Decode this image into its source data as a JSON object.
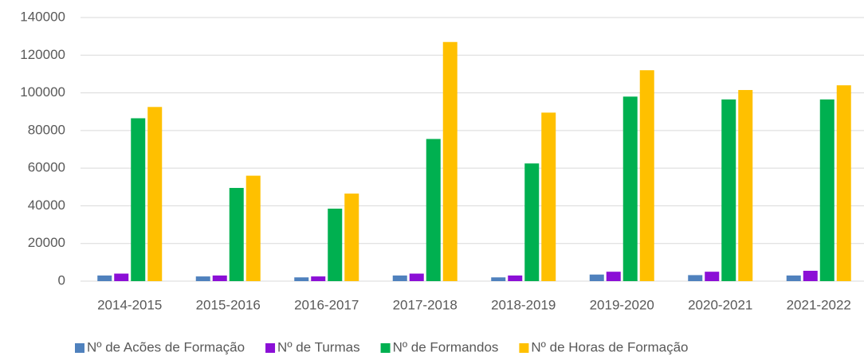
{
  "chart_data": {
    "type": "bar",
    "categories": [
      "2014-2015",
      "2015-2016",
      "2016-2017",
      "2017-2018",
      "2018-2019",
      "2019-2020",
      "2020-2021",
      "2021-2022"
    ],
    "series": [
      {
        "name": "Nº de Acões de Formação",
        "color": "#4f81bd",
        "values": [
          3000,
          2500,
          2000,
          3000,
          2000,
          3500,
          3200,
          3000
        ]
      },
      {
        "name": "Nº de Turmas",
        "color": "#8b0fd6",
        "values": [
          4000,
          3000,
          2500,
          4000,
          3000,
          5000,
          5000,
          5500
        ]
      },
      {
        "name": "Nº de Formandos",
        "color": "#00b050",
        "values": [
          86500,
          49500,
          38500,
          75500,
          62500,
          98000,
          96500,
          96500
        ]
      },
      {
        "name": "Nº de Horas de Formação",
        "color": "#ffc000",
        "values": [
          92500,
          56000,
          46500,
          127000,
          89500,
          112000,
          101500,
          104000
        ]
      }
    ],
    "ylim": [
      0,
      140000
    ],
    "yticks": [
      0,
      20000,
      40000,
      60000,
      80000,
      100000,
      120000,
      140000
    ],
    "grid": true,
    "legend": "bottom"
  }
}
